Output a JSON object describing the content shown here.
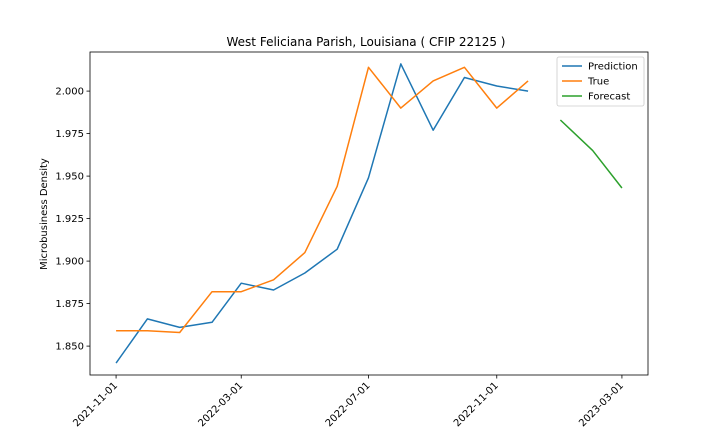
{
  "chart_data": {
    "type": "line",
    "title": "West Feliciana Parish, Louisiana ( CFIP 22125 )",
    "xlabel": "",
    "ylabel": "Microbusiness Density",
    "x_ticks": [
      "2021-11-01",
      "2022-03-01",
      "2022-07-01",
      "2022-11-01",
      "2023-03-01"
    ],
    "y_ticks": [
      "1.850",
      "1.875",
      "1.900",
      "1.925",
      "1.950",
      "1.975",
      "2.000"
    ],
    "ylim": [
      1.833,
      2.023
    ],
    "xlim": [
      "2021-10-07",
      "2023-03-26"
    ],
    "grid": false,
    "legend": "top-right",
    "series": [
      {
        "name": "Prediction",
        "color": "#1f77b4",
        "x": [
          "2021-11-01",
          "2021-12-01",
          "2022-01-01",
          "2022-02-01",
          "2022-03-01",
          "2022-04-01",
          "2022-05-01",
          "2022-06-01",
          "2022-07-01",
          "2022-08-01",
          "2022-09-01",
          "2022-10-01",
          "2022-11-01",
          "2022-12-01"
        ],
        "y": [
          1.84,
          1.866,
          1.861,
          1.864,
          1.887,
          1.883,
          1.893,
          1.907,
          1.949,
          2.016,
          1.977,
          2.008,
          2.003,
          2.0
        ]
      },
      {
        "name": "True",
        "color": "#ff7f0e",
        "x": [
          "2021-11-01",
          "2021-12-01",
          "2022-01-01",
          "2022-02-01",
          "2022-03-01",
          "2022-04-01",
          "2022-05-01",
          "2022-06-01",
          "2022-07-01",
          "2022-08-01",
          "2022-09-01",
          "2022-10-01",
          "2022-11-01",
          "2022-12-01"
        ],
        "y": [
          1.859,
          1.859,
          1.858,
          1.882,
          1.882,
          1.889,
          1.905,
          1.944,
          2.014,
          1.99,
          2.006,
          2.014,
          1.99,
          2.006
        ]
      },
      {
        "name": "Forecast",
        "color": "#2ca02c",
        "x": [
          "2023-01-01",
          "2023-02-01",
          "2023-03-01"
        ],
        "y": [
          1.983,
          1.965,
          1.943
        ]
      }
    ]
  }
}
